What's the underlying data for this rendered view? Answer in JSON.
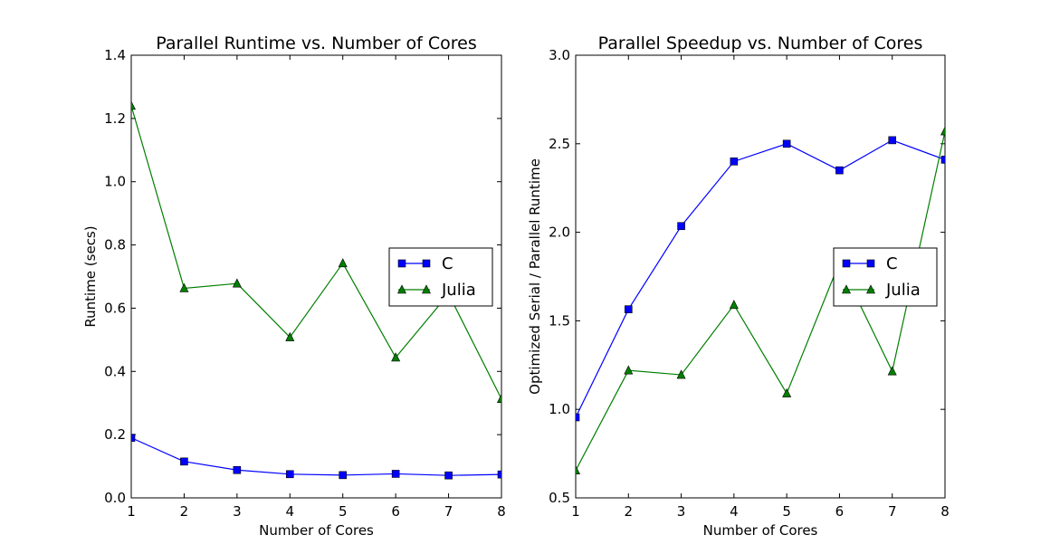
{
  "chart_data": [
    {
      "type": "line",
      "title": "Parallel Runtime vs. Number of Cores",
      "xlabel": "Number of Cores",
      "ylabel": "Runtime (secs)",
      "x": [
        1,
        2,
        3,
        4,
        5,
        6,
        7,
        8
      ],
      "xlim": [
        1,
        8
      ],
      "ylim": [
        0.0,
        1.4
      ],
      "xticks": [
        "1",
        "2",
        "3",
        "4",
        "5",
        "6",
        "7",
        "8"
      ],
      "yticks": [
        "0.0",
        "0.2",
        "0.4",
        "0.6",
        "0.8",
        "1.0",
        "1.2",
        "1.4"
      ],
      "grid": false,
      "legend_position": "center-right",
      "series": [
        {
          "name": "C",
          "color": "#0000ff",
          "marker": "square",
          "values": [
            0.19,
            0.115,
            0.088,
            0.075,
            0.072,
            0.076,
            0.071,
            0.074
          ]
        },
        {
          "name": "Julia",
          "color": "#007f00",
          "marker": "triangle",
          "values": [
            1.24,
            0.663,
            0.678,
            0.508,
            0.742,
            0.444,
            0.645,
            0.313
          ]
        }
      ]
    },
    {
      "type": "line",
      "title": "Parallel Speedup vs. Number of Cores",
      "xlabel": "Number of Cores",
      "ylabel": "Optimized Serial / Parallel Runtime",
      "x": [
        1,
        2,
        3,
        4,
        5,
        6,
        7,
        8
      ],
      "xlim": [
        1,
        8
      ],
      "ylim": [
        0.5,
        3.0
      ],
      "xticks": [
        "1",
        "2",
        "3",
        "4",
        "5",
        "6",
        "7",
        "8"
      ],
      "yticks": [
        "0.5",
        "1.0",
        "1.5",
        "2.0",
        "2.5",
        "3.0"
      ],
      "grid": false,
      "legend_position": "center-right",
      "series": [
        {
          "name": "C",
          "color": "#0000ff",
          "marker": "square",
          "values": [
            0.955,
            1.565,
            2.035,
            2.4,
            2.5,
            2.35,
            2.52,
            2.41
          ]
        },
        {
          "name": "Julia",
          "color": "#007f00",
          "marker": "triangle",
          "values": [
            0.655,
            1.22,
            1.195,
            1.59,
            1.09,
            1.83,
            1.215,
            2.57
          ]
        }
      ]
    }
  ]
}
